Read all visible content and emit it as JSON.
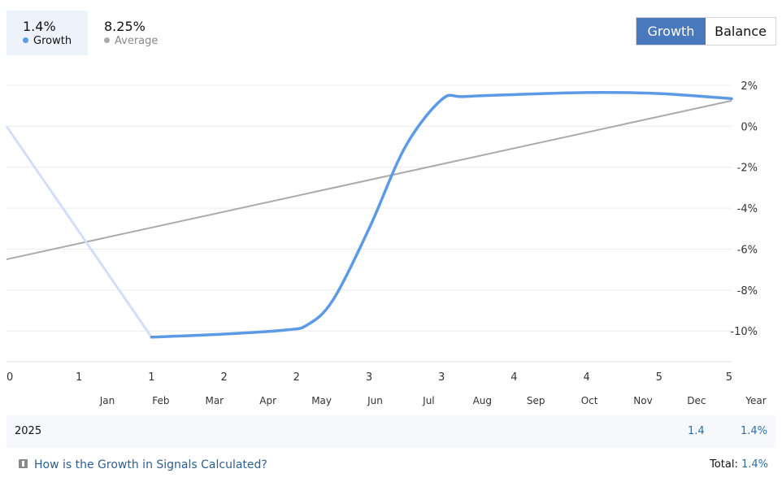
{
  "legend": {
    "growth": {
      "value": "1.4%",
      "label": "Growth",
      "color": "#5c9ae5"
    },
    "average": {
      "value": "8.25%",
      "label": "Average",
      "color": "#a9a9a9"
    }
  },
  "tabs": [
    {
      "label": "Growth",
      "active": true
    },
    {
      "label": "Balance",
      "active": false
    }
  ],
  "chart_data": {
    "type": "line",
    "x_tick_labels": [
      "0",
      "1",
      "1",
      "2",
      "2",
      "3",
      "3",
      "4",
      "4",
      "5",
      "5"
    ],
    "y_ticks": [
      2,
      0,
      -2,
      -4,
      -6,
      -8,
      -10
    ],
    "y_tick_labels": [
      "2%",
      "0%",
      "-2%",
      "-4%",
      "-6%",
      "-8%",
      "-10%"
    ],
    "ylim": [
      -11.5,
      2
    ],
    "xlim": [
      0,
      10
    ],
    "grid": true,
    "series": [
      {
        "name": "Growth",
        "color": "#5c9ae5",
        "faded_color": "#d3def7",
        "points": [
          [
            0,
            0
          ],
          [
            2,
            -10.3
          ],
          [
            3,
            -10.15
          ],
          [
            3.85,
            -9.95
          ],
          [
            4.15,
            -9.7
          ],
          [
            4.5,
            -8.5
          ],
          [
            5,
            -5
          ],
          [
            5.5,
            -1
          ],
          [
            6,
            1.3
          ],
          [
            6.3,
            1.45
          ],
          [
            7,
            1.55
          ],
          [
            8,
            1.65
          ],
          [
            9,
            1.6
          ],
          [
            10,
            1.35
          ]
        ]
      },
      {
        "name": "Average",
        "color": "#ababab",
        "points": [
          [
            0,
            -6.5
          ],
          [
            10,
            1.25
          ]
        ]
      }
    ]
  },
  "months": [
    "Jan",
    "Feb",
    "Mar",
    "Apr",
    "May",
    "Jun",
    "Jul",
    "Aug",
    "Sep",
    "Oct",
    "Nov",
    "Dec",
    "Year"
  ],
  "year_row": {
    "year": "2025",
    "dec_value": "1.4",
    "year_value": "1.4%"
  },
  "footer": {
    "help_link": "How is the Growth in Signals Calculated?",
    "total_label": "Total:",
    "total_value": "1.4%"
  }
}
